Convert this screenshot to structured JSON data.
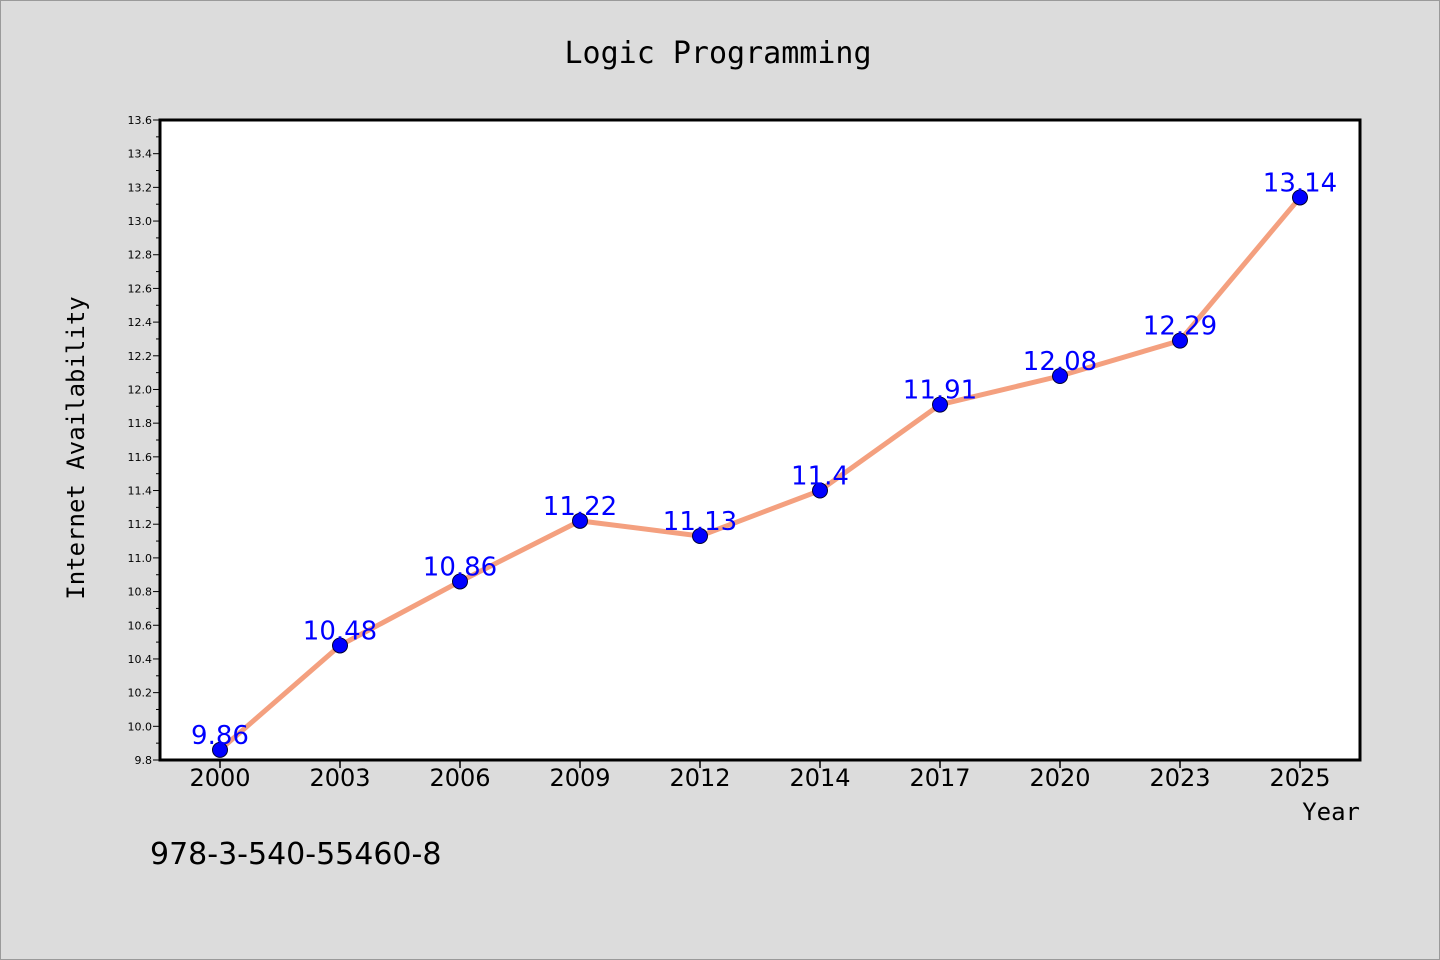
{
  "chart_data": {
    "type": "line",
    "title": "Logic Programming",
    "xlabel": "Year",
    "ylabel": "Internet Availability",
    "categories": [
      "2000",
      "2003",
      "2006",
      "2009",
      "2012",
      "2014",
      "2017",
      "2020",
      "2023",
      "2025"
    ],
    "values": [
      9.86,
      10.48,
      10.86,
      11.22,
      11.13,
      11.4,
      11.91,
      12.08,
      12.29,
      13.14
    ],
    "data_labels": [
      "9.86",
      "10.48",
      "10.86",
      "11.22",
      "11.13",
      "11.4",
      "11.91",
      "12.08",
      "12.29",
      "13.14"
    ],
    "ylim": [
      9.8,
      13.6
    ],
    "yticks": [
      "9.8",
      "10.0",
      "10.2",
      "10.4",
      "10.6",
      "10.8",
      "11.0",
      "11.2",
      "11.4",
      "11.6",
      "11.8",
      "12.0",
      "12.2",
      "12.4",
      "12.6",
      "12.8",
      "13.0",
      "13.2",
      "13.4",
      "13.6"
    ],
    "grid": false,
    "legend": "none",
    "line_color": "#f4a07f",
    "marker_color": "#0000ff",
    "label_color": "#0000ff"
  },
  "footer_text": "978-3-540-55460-8"
}
